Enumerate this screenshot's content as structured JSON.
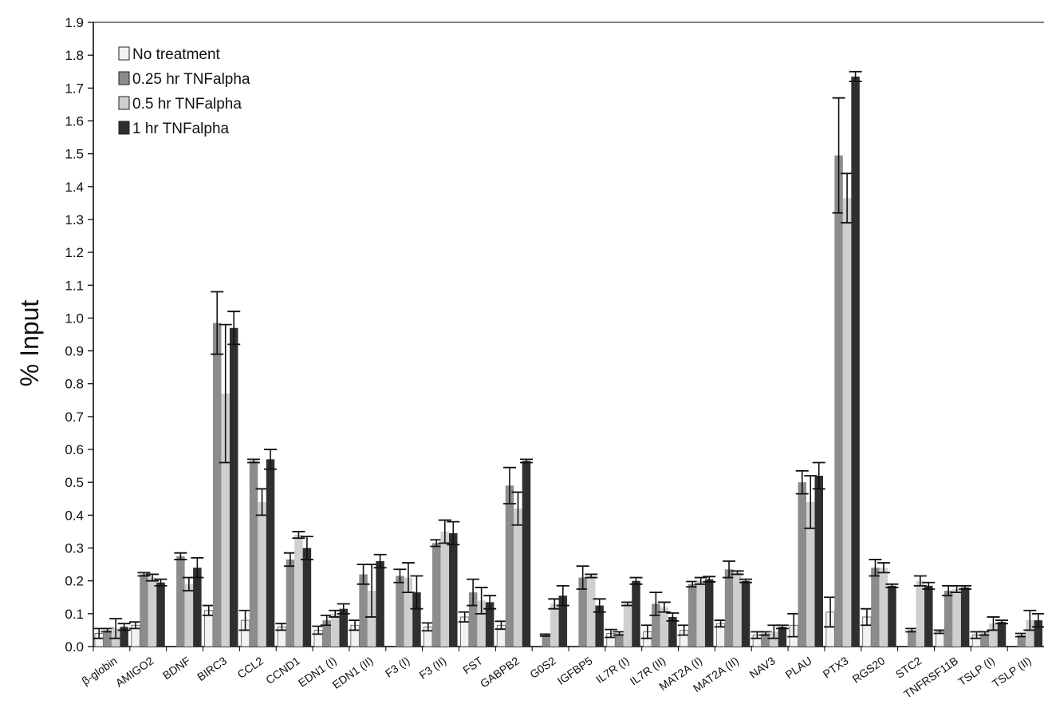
{
  "chart_data": {
    "type": "bar",
    "title": "",
    "xlabel": "",
    "ylabel": "% Input",
    "ylim": [
      0,
      1.9
    ],
    "yticks": [
      "0.0",
      "0.1",
      "0.2",
      "0.3",
      "0.4",
      "0.5",
      "0.6",
      "0.7",
      "0.8",
      "0.9",
      "1.0",
      "1.1",
      "1.2",
      "1.3",
      "1.4",
      "1.5",
      "1.6",
      "1.7",
      "1.8",
      "1.9"
    ],
    "grid": false,
    "legend_position": "top-left",
    "categories": [
      "β-globin",
      "AMIGO2",
      "BDNF",
      "BIRC3",
      "CCL2",
      "CCND1",
      "EDN1 (I)",
      "EDN1 (II)",
      "F3 (I)",
      "F3 (II)",
      "FST",
      "GABPB2",
      "G0S2",
      "IGFBP5",
      "IL7R (I)",
      "IL7R (II)",
      "MAT2A (I)",
      "MAT2A (II)",
      "NAV3",
      "PLAU",
      "PTX3",
      "RGS20",
      "STC2",
      "TNFRSF11B",
      "TSLP (I)",
      "TSLP (II)"
    ],
    "series": [
      {
        "name": "No treatment",
        "color": "#f2f2f2",
        "values": [
          0.04,
          0.065,
          0.0,
          0.11,
          0.08,
          0.06,
          0.05,
          0.065,
          0.0,
          0.06,
          0.09,
          0.065,
          0.0,
          0.0,
          0.04,
          0.045,
          0.05,
          0.07,
          0.035,
          0.065,
          0.105,
          0.09,
          0.0,
          0.045,
          0.035,
          0.0
        ],
        "errors": [
          0.015,
          0.01,
          0.0,
          0.015,
          0.03,
          0.01,
          0.012,
          0.015,
          0.0,
          0.012,
          0.015,
          0.012,
          0.0,
          0.0,
          0.012,
          0.02,
          0.015,
          0.01,
          0.01,
          0.035,
          0.045,
          0.025,
          0.0,
          0.005,
          0.01,
          0.0
        ]
      },
      {
        "name": "0.25 hr TNFalpha",
        "color": "#8c8c8c",
        "values": [
          0.05,
          0.22,
          0.275,
          0.985,
          0.565,
          0.265,
          0.08,
          0.22,
          0.215,
          0.315,
          0.165,
          0.49,
          0.035,
          0.21,
          0.04,
          0.13,
          0.19,
          0.235,
          0.04,
          0.5,
          1.495,
          0.24,
          0.05,
          0.17,
          0.04,
          0.035
        ],
        "errors": [
          0.005,
          0.005,
          0.01,
          0.095,
          0.005,
          0.02,
          0.015,
          0.03,
          0.02,
          0.01,
          0.04,
          0.055,
          0.003,
          0.035,
          0.005,
          0.035,
          0.008,
          0.025,
          0.005,
          0.035,
          0.175,
          0.025,
          0.005,
          0.015,
          0.005,
          0.005
        ],
        "labels": [
          null,
          null,
          null,
          null,
          null,
          null,
          null,
          null,
          null,
          null,
          null,
          null,
          null,
          null,
          null,
          null,
          null,
          null,
          null,
          null,
          null,
          null,
          null,
          null,
          null,
          null
        ]
      },
      {
        "name": "0.5 hr TNFalpha",
        "color": "#cfcfcf",
        "values": [
          0.055,
          0.21,
          0.19,
          0.77,
          0.44,
          0.34,
          0.1,
          0.17,
          0.21,
          0.35,
          0.14,
          0.42,
          0.13,
          0.215,
          0.13,
          0.12,
          0.2,
          0.225,
          0.045,
          0.44,
          1.365,
          0.24,
          0.2,
          0.175,
          0.07,
          0.08
        ],
        "errors": [
          0.03,
          0.01,
          0.02,
          0.21,
          0.04,
          0.01,
          0.01,
          0.08,
          0.045,
          0.035,
          0.04,
          0.05,
          0.015,
          0.005,
          0.005,
          0.015,
          0.01,
          0.005,
          0.02,
          0.08,
          0.075,
          0.015,
          0.015,
          0.01,
          0.02,
          0.03
        ]
      },
      {
        "name": "1 hr TNFalpha",
        "color": "#2f2f2f",
        "values": [
          0.06,
          0.195,
          0.24,
          0.97,
          0.57,
          0.3,
          0.115,
          0.26,
          0.165,
          0.345,
          0.135,
          0.565,
          0.155,
          0.125,
          0.2,
          0.09,
          0.205,
          0.2,
          0.06,
          0.52,
          1.735,
          0.185,
          0.185,
          0.18,
          0.075,
          0.08
        ],
        "errors": [
          0.01,
          0.01,
          0.03,
          0.05,
          0.03,
          0.035,
          0.015,
          0.02,
          0.05,
          0.035,
          0.02,
          0.005,
          0.03,
          0.02,
          0.01,
          0.012,
          0.008,
          0.005,
          0.005,
          0.04,
          0.015,
          0.005,
          0.01,
          0.005,
          0.005,
          0.02
        ]
      }
    ]
  }
}
